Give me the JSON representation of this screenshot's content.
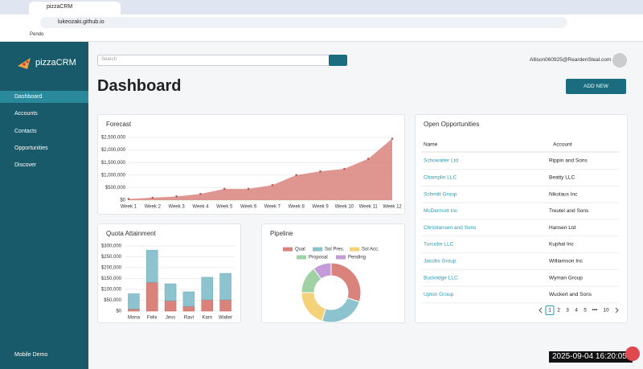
{
  "browser": {
    "tab_title": "pizzaCRM",
    "url": "lukeozaki.github.io",
    "bookmark": "Pendo"
  },
  "sidebar": {
    "brand": "pizzaCRM",
    "nav": [
      "Dashboard",
      "Accounts",
      "Contacts",
      "Opportunities",
      "Discover"
    ],
    "footer": "Mobile Demo"
  },
  "header": {
    "search_placeholder": "Search",
    "user": "Allison060925@ReardenSteal.com",
    "title": "Dashboard",
    "add_button": "ADD NEW"
  },
  "forecast": {
    "type": "area",
    "title": "Forecast",
    "categories": [
      "Week 1",
      "Week 2",
      "Week 3",
      "Week 4",
      "Week 5",
      "Week 6",
      "Week 7",
      "Week 8",
      "Week 9",
      "Week 10",
      "Week 11",
      "Week 12"
    ],
    "values": [
      50000,
      100000,
      150000,
      250000,
      450000,
      450000,
      600000,
      1000000,
      1150000,
      1250000,
      1650000,
      2450000
    ],
    "color": "#d9837c",
    "ylim": [
      0,
      2500000
    ],
    "yticks": [
      {
        "value": 0,
        "label": "$0"
      },
      {
        "value": 500000,
        "label": "$500,000"
      },
      {
        "value": 1000000,
        "label": "$1,000,000"
      },
      {
        "value": 1500000,
        "label": "$1,500,000"
      },
      {
        "value": 2000000,
        "label": "$2,000,000"
      },
      {
        "value": 2500000,
        "label": "$2,500,000"
      }
    ]
  },
  "quota": {
    "type": "stacked_bar",
    "title": "Quota Attainment",
    "categories": [
      "Mona",
      "Felix",
      "Jess",
      "Ravi",
      "Karn",
      "Walter"
    ],
    "series": [
      {
        "color": "#d9837c",
        "values": [
          10000,
          133000,
          48000,
          22000,
          52000,
          52000
        ]
      },
      {
        "color": "#8cc3cf",
        "values": [
          70000,
          148000,
          78000,
          67000,
          104000,
          122000
        ]
      }
    ],
    "ylim": [
      0,
      300000
    ],
    "yticks": [
      {
        "value": 0,
        "label": "$0"
      },
      {
        "value": 50000,
        "label": "$50,000"
      },
      {
        "value": 100000,
        "label": "$100,000"
      },
      {
        "value": 150000,
        "label": "$150,000"
      },
      {
        "value": 200000,
        "label": "$200,000"
      },
      {
        "value": 250000,
        "label": "$250,000"
      },
      {
        "value": 300000,
        "label": "$300,000"
      }
    ]
  },
  "pipeline": {
    "type": "donut",
    "title": "Pipeline",
    "categories": [
      "Qual",
      "Sol Pres.",
      "Sol Acc.",
      "Proposal",
      "Pending"
    ],
    "values": [
      30,
      25,
      20,
      15,
      10
    ],
    "colors": [
      "#d9837c",
      "#8cc3cf",
      "#f3d27a",
      "#9fd1a4",
      "#c39bd6"
    ]
  },
  "opportunities": {
    "title": "Open Opportunities",
    "columns": [
      "Name",
      "Account"
    ],
    "rows": [
      [
        "Schowalter Ltd",
        "Rippin and Sons"
      ],
      [
        "Champlin LLC",
        "Beatty LLC"
      ],
      [
        "Schmitt Group",
        "Nikolaus Inc"
      ],
      [
        "McDermott Inc",
        "Treutel and Sons"
      ],
      [
        "Christiansen and Sons",
        "Hansen Ltd"
      ],
      [
        "Turcotte LLC",
        "Kuphal Inc"
      ],
      [
        "Jacobs Group",
        "Williamson Inc"
      ],
      [
        "Buckridge LLC",
        "Wyman Group"
      ],
      [
        "Upton Group",
        "Wuckert and Sons"
      ]
    ]
  },
  "pagination": [
    "1",
    "2",
    "3",
    "4",
    "5",
    "•••",
    "10"
  ],
  "timestamp": "2025-09-04 16:20:05"
}
